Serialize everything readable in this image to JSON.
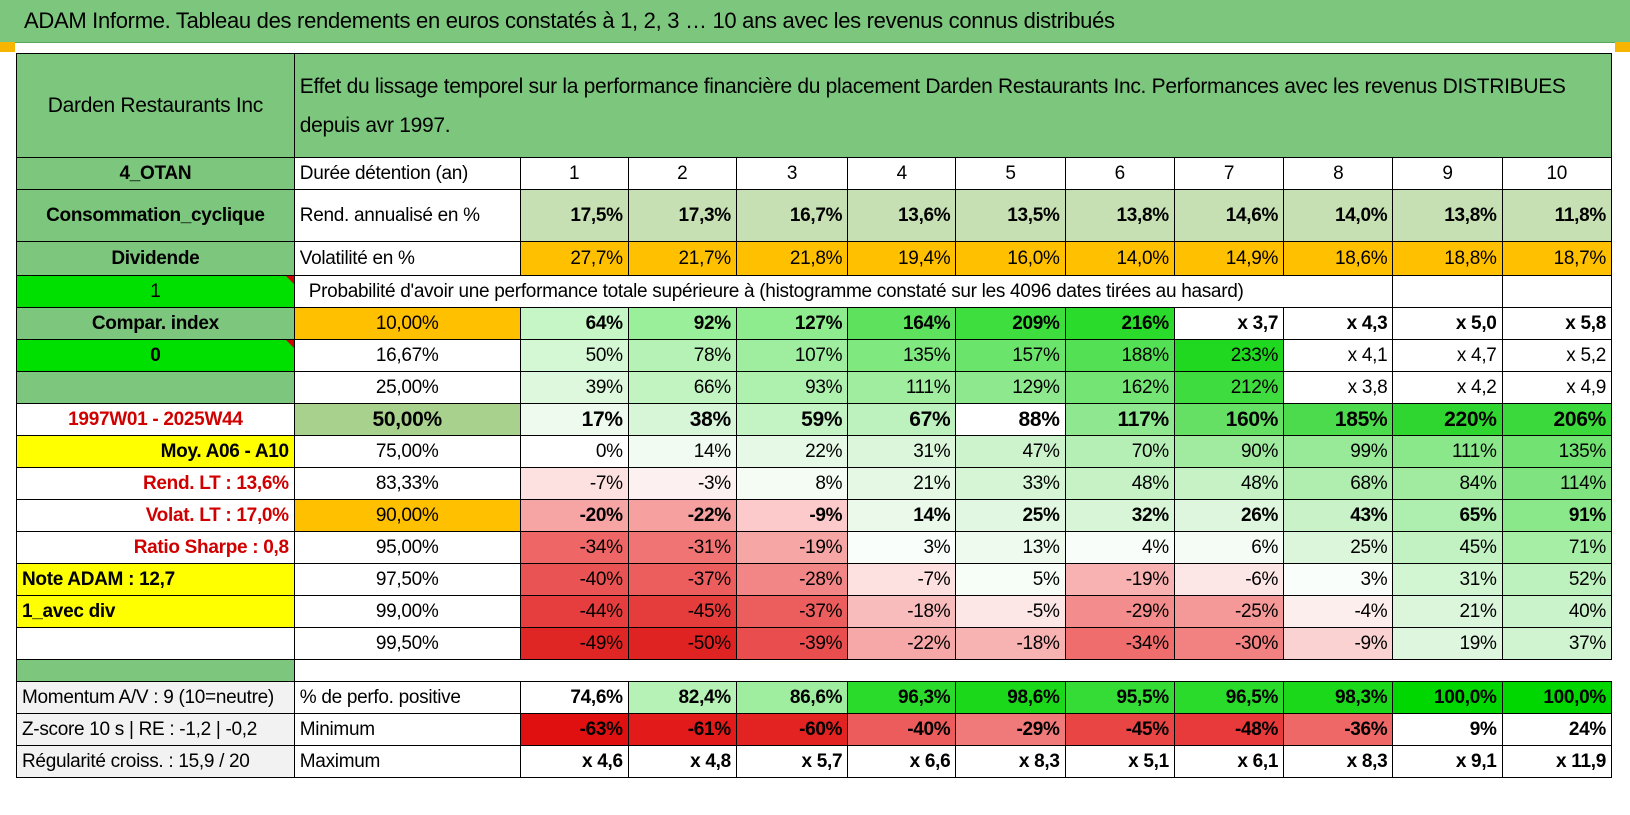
{
  "title": "ADAM Informe. Tableau des rendements en euros constatés à 1, 2, 3 … 10 ans avec les revenus connus distribués",
  "company": "Darden Restaurants Inc",
  "description": "Effet du lissage temporel sur la performance financière du placement Darden Restaurants Inc. Performances avec les revenus DISTRIBUES depuis avr 1997.",
  "left_labels": {
    "category": "4_OTAN",
    "sector": "Consommation_cyclique",
    "type": "Dividende",
    "flag1": "1",
    "compar": "Compar. index",
    "flag0": "0",
    "period": "1997W01 - 2025W44",
    "moy": "Moy. A06 - A10",
    "rend_lt": "Rend. LT :    13,6%",
    "volat_lt": "Volat. LT :    17,0%",
    "sharpe": "Ratio Sharpe :    0,8",
    "note": "Note ADAM : 12,7",
    "avec_div": "1_avec div",
    "momentum": "Momentum A/V : 9 (10=neutre)",
    "zscore": "Z-score 10 s | RE : -1,2 | -0,2",
    "regularite": "Régularité croiss. : 15,9 / 20"
  },
  "header_row": {
    "label": "Durée détention (an)",
    "years": [
      "1",
      "2",
      "3",
      "4",
      "5",
      "6",
      "7",
      "8",
      "9",
      "10"
    ]
  },
  "rend_row": {
    "label": "Rend. annualisé en %",
    "values": [
      "17,5%",
      "17,3%",
      "16,7%",
      "13,6%",
      "13,5%",
      "13,8%",
      "14,6%",
      "14,0%",
      "13,8%",
      "11,8%"
    ]
  },
  "vol_row": {
    "label": "Volatilité en %",
    "values": [
      "27,7%",
      "21,7%",
      "21,8%",
      "19,4%",
      "16,0%",
      "14,0%",
      "14,9%",
      "18,6%",
      "18,8%",
      "18,7%"
    ]
  },
  "prob_header": "Probabilité d'avoir une performance totale supérieure à (histogramme constaté sur les 4096 dates tirées au hasard)",
  "prob_rows": [
    {
      "pct": "10,00%",
      "values": [
        "64%",
        "92%",
        "127%",
        "164%",
        "209%",
        "216%",
        "x 3,7",
        "x 4,3",
        "x 5,0",
        "x 5,8"
      ]
    },
    {
      "pct": "16,67%",
      "values": [
        "50%",
        "78%",
        "107%",
        "135%",
        "157%",
        "188%",
        "233%",
        "x 4,1",
        "x 4,7",
        "x 5,2"
      ]
    },
    {
      "pct": "25,00%",
      "values": [
        "39%",
        "66%",
        "93%",
        "111%",
        "129%",
        "162%",
        "212%",
        "x 3,8",
        "x 4,2",
        "x 4,9"
      ]
    },
    {
      "pct": "50,00%",
      "values": [
        "17%",
        "38%",
        "59%",
        "67%",
        "88%",
        "117%",
        "160%",
        "185%",
        "220%",
        "206%"
      ]
    },
    {
      "pct": "75,00%",
      "values": [
        "0%",
        "14%",
        "22%",
        "31%",
        "47%",
        "70%",
        "90%",
        "99%",
        "111%",
        "135%"
      ]
    },
    {
      "pct": "83,33%",
      "values": [
        "-7%",
        "-3%",
        "8%",
        "21%",
        "33%",
        "48%",
        "48%",
        "68%",
        "84%",
        "114%"
      ]
    },
    {
      "pct": "90,00%",
      "values": [
        "-20%",
        "-22%",
        "-9%",
        "14%",
        "25%",
        "32%",
        "26%",
        "43%",
        "65%",
        "91%"
      ]
    },
    {
      "pct": "95,00%",
      "values": [
        "-34%",
        "-31%",
        "-19%",
        "3%",
        "13%",
        "4%",
        "6%",
        "25%",
        "45%",
        "71%"
      ]
    },
    {
      "pct": "97,50%",
      "values": [
        "-40%",
        "-37%",
        "-28%",
        "-7%",
        "5%",
        "-19%",
        "-6%",
        "3%",
        "31%",
        "52%"
      ]
    },
    {
      "pct": "99,00%",
      "values": [
        "-44%",
        "-45%",
        "-37%",
        "-18%",
        "-5%",
        "-29%",
        "-25%",
        "-4%",
        "21%",
        "40%"
      ]
    },
    {
      "pct": "99,50%",
      "values": [
        "-49%",
        "-50%",
        "-39%",
        "-22%",
        "-18%",
        "-34%",
        "-30%",
        "-9%",
        "19%",
        "37%"
      ]
    }
  ],
  "bottom_rows": [
    {
      "label": "% de perfo. positive",
      "values": [
        "74,6%",
        "82,4%",
        "86,6%",
        "96,3%",
        "98,6%",
        "95,5%",
        "96,5%",
        "98,3%",
        "100,0%",
        "100,0%"
      ]
    },
    {
      "label": "Minimum",
      "values": [
        "-63%",
        "-61%",
        "-60%",
        "-40%",
        "-29%",
        "-45%",
        "-48%",
        "-36%",
        "9%",
        "24%"
      ]
    },
    {
      "label": "Maximum",
      "values": [
        "x 4,6",
        "x 4,8",
        "x 5,7",
        "x 6,6",
        "x 8,3",
        "x 5,1",
        "x 6,1",
        "x 8,3",
        "x 9,1",
        "x 11,9"
      ]
    }
  ],
  "colors": {
    "header_green": "#7dc67d",
    "bright_green": "#00e000",
    "orange": "#ffc000",
    "yellow": "#ffff00",
    "red_text": "#d00000",
    "rend_cells": [
      "#c6e0b4",
      "#c6e0b4",
      "#c6e0b4",
      "#c6e0b4",
      "#c6e0b4",
      "#c6e0b4",
      "#c6e0b4",
      "#c6e0b4",
      "#c6e0b4",
      "#c6e0b4"
    ],
    "vol_cells": [
      "#ffc000",
      "#ffc000",
      "#ffc000",
      "#ffc000",
      "#ffc000",
      "#ffc000",
      "#ffc000",
      "#ffc000",
      "#ffc000",
      "#ffc000"
    ],
    "prob_cells": [
      [
        "#c6f5c6",
        "#9af09a",
        "#8eec8e",
        "#5ee25e",
        "#3ede3e",
        "#2bdb2b",
        "#ffffff",
        "#ffffff",
        "#ffffff",
        "#ffffff"
      ],
      [
        "#d4f7d4",
        "#b6f2b6",
        "#9fee9f",
        "#7fe87f",
        "#6be46b",
        "#54e054",
        "#1fd81f",
        "#ffffff",
        "#ffffff",
        "#ffffff"
      ],
      [
        "#ddf8dd",
        "#c2f4c2",
        "#aef0ae",
        "#a0ed9f",
        "#8ee98e",
        "#74e574",
        "#3edc3e",
        "#ffffff",
        "#ffffff",
        "#ffffff"
      ],
      [
        "#edfaed",
        "#d7f6d7",
        "#c4f3c4",
        "#bdf1bd",
        "#a9ee a9",
        "#8fe88f",
        "#65e065",
        "#4cdb4c",
        "#2fd62f",
        "#3cd93c"
      ],
      [
        "#ffffff",
        "#f1fbf1",
        "#e6f8e6",
        "#dcf6dc",
        "#cdf3cd",
        "#b6efb6",
        "#a0eb9f",
        "#98ea98",
        "#8ae78a",
        "#72e272"
      ],
      [
        "#fde0e0",
        "#fdf0f0",
        "#f4fcf4",
        "#e4f8e4",
        "#d5f5d5",
        "#c6f2c6",
        "#c6f2c6",
        "#b0eeb0",
        "#a0eba0",
        "#7fe47f"
      ],
      [
        "#f7a4a4",
        "#f6a0a0",
        "#fccaca",
        "#ebf9eb",
        "#e1f7e1",
        "#d8f5d8",
        "#def6de",
        "#c9f2c9",
        "#aeeeae",
        "#8ae78a"
      ],
      [
        "#ee6666",
        "#f07474",
        "#f7a6a6",
        "#fafefa",
        "#edfaed",
        "#f9fdf9",
        "#f5fcf5",
        "#dcf6dc",
        "#c2f2c2",
        "#a6eda6"
      ],
      [
        "#ea5353",
        "#ec5e5e",
        "#f28585",
        "#fde0e0",
        "#f7fdf7",
        "#f8b2b2",
        "#fde6e6",
        "#fafefa",
        "#d2f5d2",
        "#bdf1bd"
      ],
      [
        "#e63e3e",
        "#e53c3c",
        "#ec5e5e",
        "#f8bcbc",
        "#fde6e6",
        "#f38c8c",
        "#f49898",
        "#fdeeee",
        "#dbf6db",
        "#cbf3cb"
      ],
      [
        "#e02525",
        "#df2222",
        "#e94d4d",
        "#f6a8a8",
        "#f7b2b2",
        "#ef6d6d",
        "#f28282",
        "#fbd2d2",
        "#def6de",
        "#d0f4d0"
      ]
    ],
    "perf_cells": [
      "#ffffff",
      "#b6f2b6",
      "#9fee9f",
      "#2bdb2b",
      "#1bd81b",
      "#35dc35",
      "#2bdb2b",
      "#1bd81b",
      "#00d600",
      "#00d600"
    ],
    "min_cells": [
      "#e01010",
      "#e21a1a",
      "#e32222",
      "#ec5c5c",
      "#f07a7a",
      "#e94545",
      "#e83a3a",
      "#ee6868",
      "#ffffff",
      "#ffffff"
    ]
  }
}
